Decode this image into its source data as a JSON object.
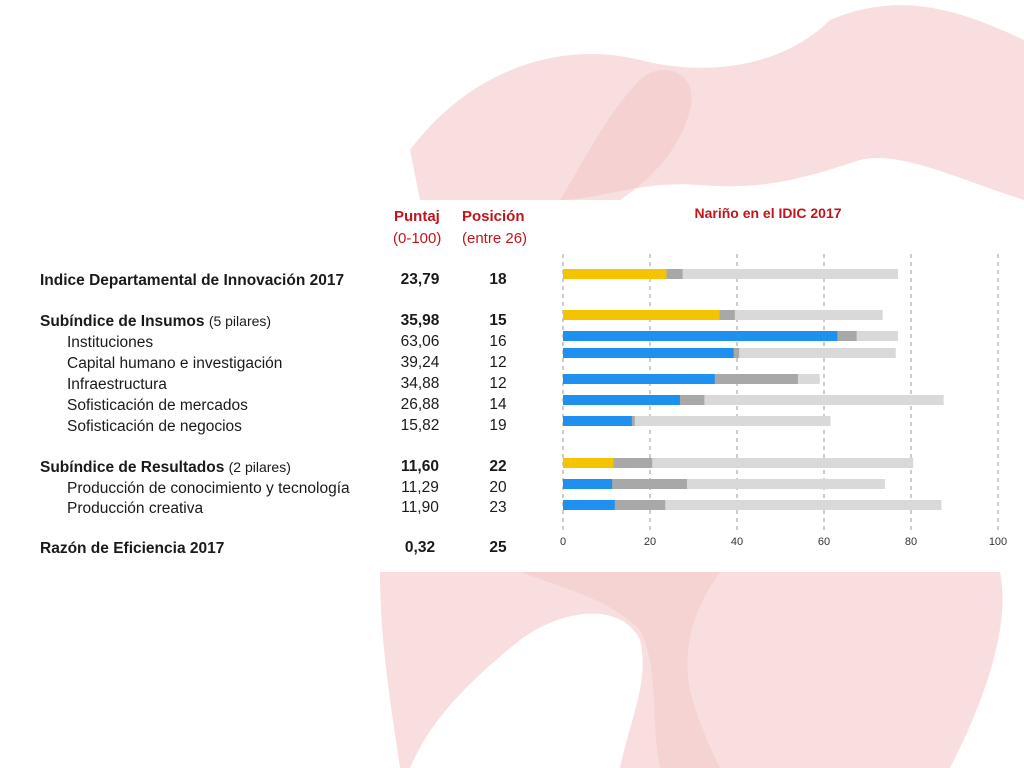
{
  "headers": {
    "score_title": "Puntaj",
    "score_range": "(0-100)",
    "rank_title": "Posición",
    "rank_range": "(entre 26)"
  },
  "colors": {
    "accent_red": "#c0151b",
    "index_yellow": "#f5c400",
    "pillar_blue": "#1e90ef",
    "min_segment_gray": "#a8a8a8",
    "range_light_gray": "#d9d9d9"
  },
  "rows": [
    {
      "label": "Indice Departamental de Innovación 2017",
      "note": "",
      "level": "main",
      "score": "23,79",
      "rank": "18"
    },
    {
      "label": "Subíndice de Insumos",
      "note": "(5 pilares)",
      "level": "main",
      "score": "35,98",
      "rank": "15"
    },
    {
      "label": "Instituciones",
      "note": "",
      "level": "child",
      "score": "63,06",
      "rank": "16"
    },
    {
      "label": "Capital humano e investigación",
      "note": "",
      "level": "child",
      "score": "39,24",
      "rank": "12"
    },
    {
      "label": "Infraestructura",
      "note": "",
      "level": "child",
      "score": "34,88",
      "rank": "12"
    },
    {
      "label": "Sofisticación de mercados",
      "note": "",
      "level": "child",
      "score": "26,88",
      "rank": "14"
    },
    {
      "label": "Sofisticación de negocios",
      "note": "",
      "level": "child",
      "score": "15,82",
      "rank": "19"
    },
    {
      "label": "Subíndice de Resultados",
      "note": "(2 pilares)",
      "level": "main",
      "score": "11,60",
      "rank": "22"
    },
    {
      "label": "Producción de conocimiento y tecnología",
      "note": "",
      "level": "child",
      "score": "11,29",
      "rank": "20"
    },
    {
      "label": "Producción creativa",
      "note": "",
      "level": "child",
      "score": "11,90",
      "rank": "23"
    },
    {
      "label": "Razón de Eficiencia 2017",
      "note": "",
      "level": "main",
      "score": "0,32",
      "rank": "25"
    }
  ],
  "chart_data": {
    "type": "bar",
    "orientation": "horizontal",
    "title": "Nariño en el IDIC 2017",
    "xlim": [
      0,
      100
    ],
    "x_ticks": [
      0,
      20,
      40,
      60,
      80,
      100
    ],
    "grid": "vertical dashed",
    "categories": [
      "Indice Departamental de Innovación 2017",
      "Subíndice de Insumos",
      "Instituciones",
      "Capital humano e investigación",
      "Infraestructura",
      "Sofisticación de mercados",
      "Sofisticación de negocios",
      "Subíndice de Resultados",
      "Producción de conocimiento y tecnología",
      "Producción creativa"
    ],
    "series": [
      {
        "values": [
          23.79,
          35.98,
          63.06,
          39.24,
          34.88,
          26.88,
          15.82,
          11.6,
          11.29,
          11.9
        ]
      },
      {
        "values": [
          27.5,
          39.5,
          67.5,
          40.5,
          54.0,
          32.5,
          16.5,
          20.5,
          28.5,
          23.5
        ]
      },
      {
        "values": [
          77.0,
          73.5,
          77.0,
          76.5,
          59.0,
          87.5,
          61.5,
          80.5,
          74.0,
          87.0
        ]
      }
    ],
    "bar_colors": [
      "#f5c400",
      "#f5c400",
      "#1e90ef",
      "#1e90ef",
      "#1e90ef",
      "#1e90ef",
      "#1e90ef",
      "#f5c400",
      "#1e90ef",
      "#1e90ef"
    ]
  }
}
